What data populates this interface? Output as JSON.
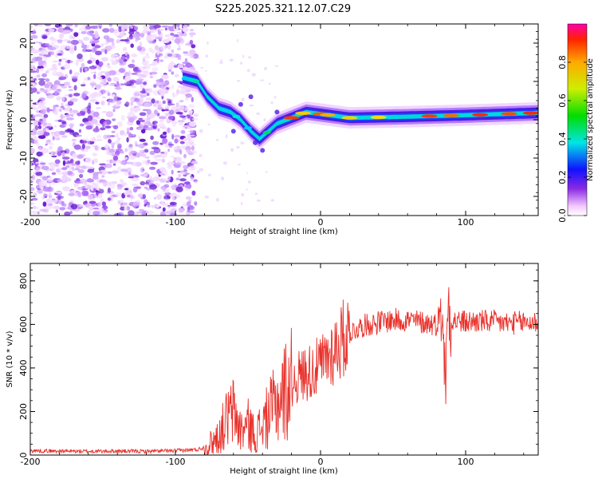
{
  "title": "S225.2025.321.12.07.C29",
  "chart_data": [
    {
      "type": "heatmap",
      "name": "spectrogram",
      "xlabel": "Height of straight line (km)",
      "ylabel": "Frequency (Hz)",
      "xlim": [
        -200,
        150
      ],
      "ylim": [
        -25,
        25
      ],
      "xticks": [
        -200,
        -100,
        0,
        100
      ],
      "yticks": [
        -20,
        -10,
        0,
        10,
        20
      ],
      "colorbar": {
        "label": "Normalized spectral amplitude",
        "range": [
          0,
          1
        ],
        "ticks": [
          "0.0",
          "0.2",
          "0.4",
          "0.6",
          "0.8"
        ]
      },
      "ridge_track": [
        {
          "x": -95,
          "f": 11
        },
        {
          "x": -85,
          "f": 10
        },
        {
          "x": -78,
          "f": 6
        },
        {
          "x": -70,
          "f": 3
        },
        {
          "x": -62,
          "f": 2
        },
        {
          "x": -55,
          "f": 0
        },
        {
          "x": -48,
          "f": -3
        },
        {
          "x": -42,
          "f": -5
        },
        {
          "x": -36,
          "f": -3
        },
        {
          "x": -30,
          "f": -1
        },
        {
          "x": -20,
          "f": 0.5
        },
        {
          "x": -10,
          "f": 2
        },
        {
          "x": 0,
          "f": 1.5
        },
        {
          "x": 20,
          "f": 0.5
        },
        {
          "x": 60,
          "f": 0.8
        },
        {
          "x": 100,
          "f": 1.2
        },
        {
          "x": 150,
          "f": 1.8
        }
      ]
    },
    {
      "type": "line",
      "name": "snr",
      "xlabel": "Height of straight line (km)",
      "ylabel": "SNR (10 * v/v)",
      "xlim": [
        -200,
        150
      ],
      "ylim": [
        0,
        880
      ],
      "xticks": [
        -200,
        -100,
        0,
        100
      ],
      "yticks": [
        0,
        200,
        400,
        600,
        800
      ],
      "series": [
        {
          "name": "SNR",
          "color": "#e8312b",
          "x": [
            -200,
            -180,
            -160,
            -140,
            -120,
            -100,
            -85,
            -78,
            -70,
            -65,
            -60,
            -55,
            -50,
            -45,
            -40,
            -35,
            -30,
            -25,
            -20,
            -15,
            -10,
            -5,
            0,
            5,
            10,
            15,
            20,
            25,
            30,
            40,
            50,
            60,
            70,
            80,
            84,
            86,
            88,
            90,
            100,
            110,
            120,
            130,
            140,
            150
          ],
          "values": [
            20,
            18,
            17,
            18,
            17,
            20,
            25,
            40,
            90,
            160,
            200,
            110,
            140,
            90,
            140,
            190,
            240,
            290,
            330,
            360,
            380,
            390,
            410,
            450,
            490,
            530,
            560,
            580,
            595,
            610,
            620,
            620,
            610,
            600,
            700,
            300,
            720,
            620,
            610,
            615,
            610,
            605,
            610,
            610
          ]
        }
      ]
    }
  ]
}
